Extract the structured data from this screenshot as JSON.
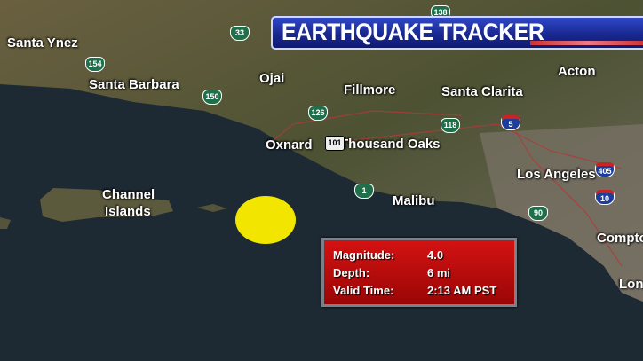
{
  "banner": {
    "title": "EARTHQUAKE TRACKER"
  },
  "places": [
    "Santa Ynez",
    "Santa Barbara",
    "Ojai",
    "Fillmore",
    "Santa Clarita",
    "Acton",
    "Oxnard",
    "Thousand Oaks",
    "Los Angeles",
    "Malibu",
    "Channel",
    "Islands",
    "Compton",
    "Long"
  ],
  "highways": [
    "33",
    "154",
    "150",
    "126",
    "118",
    "5",
    "101",
    "1",
    "90",
    "405",
    "10",
    "138"
  ],
  "quake": {
    "magnitude_label": "Magnitude:",
    "magnitude": "4.0",
    "depth_label": "Depth:",
    "depth": "6 mi",
    "time_label": "Valid Time:",
    "time": "2:13 AM PST",
    "marker_color": "#f2e600"
  },
  "colors": {
    "sea": "#1d2a33",
    "land": "#5a5a3a",
    "banner": "#1a2890",
    "info": "#c80e0e"
  }
}
